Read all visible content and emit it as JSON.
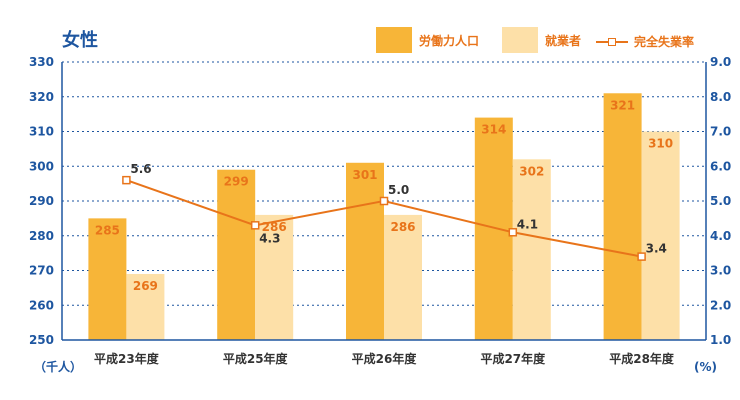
{
  "colors": {
    "title": "#1e56a0",
    "axis": "#1e56a0",
    "grid": "#1e56a0",
    "labor_bar": "#f7b538",
    "employed_bar": "#fde0a8",
    "rate_line": "#e8741a",
    "bar_label": "#e8741a",
    "rate_label": "#333333",
    "legend_text": "#e8741a"
  },
  "chart_data": {
    "type": "bar",
    "title": "女性",
    "categories": [
      "平成23年度",
      "平成25年度",
      "平成26年度",
      "平成27年度",
      "平成28年度"
    ],
    "series": [
      {
        "name": "労働力人口",
        "values": [
          285,
          299,
          301,
          314,
          321
        ],
        "axis": "left",
        "kind": "bar"
      },
      {
        "name": "就業者",
        "values": [
          269,
          286,
          286,
          302,
          310
        ],
        "axis": "left",
        "kind": "bar"
      },
      {
        "name": "完全失業率",
        "values": [
          5.6,
          4.3,
          5.0,
          4.1,
          3.4
        ],
        "axis": "right",
        "kind": "line"
      }
    ],
    "y_left": {
      "min": 250,
      "max": 330,
      "ticks": [
        "250",
        "260",
        "270",
        "280",
        "290",
        "300",
        "310",
        "320",
        "330"
      ],
      "unit": "（千人）"
    },
    "y_right": {
      "min": 1.0,
      "max": 9.0,
      "ticks": [
        "1.0",
        "2.0",
        "3.0",
        "4.0",
        "5.0",
        "6.0",
        "7.0",
        "8.0",
        "9.0"
      ],
      "unit": "(%)"
    },
    "rate_labels": [
      "5.6",
      "4.3",
      "5.0",
      "4.1",
      "3.4"
    ],
    "grid": true,
    "legend_position": "top-right"
  }
}
